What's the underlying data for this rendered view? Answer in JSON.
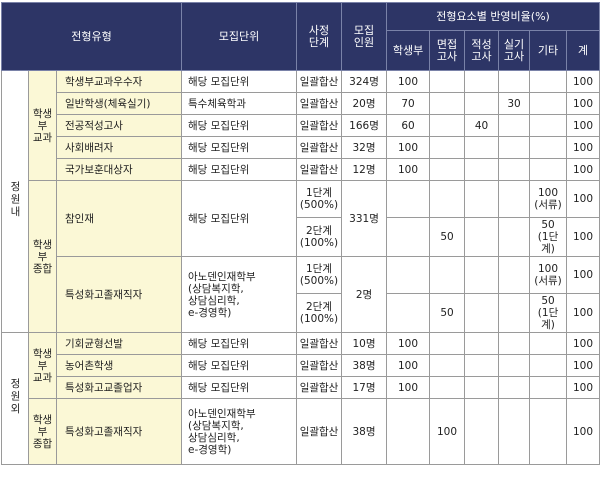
{
  "table": {
    "header": {
      "type": "전형유형",
      "unit": "모집단위",
      "stage": "사정\n단계",
      "quota": "모집\n인원",
      "ratio": "전형요소별 반영비율(%)",
      "elements": [
        "학생부",
        "면접\n고사",
        "적성\n고사",
        "실기\n고사",
        "기타",
        "계"
      ]
    },
    "groups": [
      {
        "label": "정원내",
        "subgroups": [
          {
            "label": "학생\n부\n교과",
            "rows": [
              {
                "name": "학생부교과우수자",
                "unit": "해당 모집단위",
                "stage": "일괄합산",
                "quota": "324명",
                "scores": [
                  100,
                  null,
                  null,
                  null,
                  null,
                  100
                ]
              },
              {
                "name": "일반학생(체육실기)",
                "unit": "특수체육학과",
                "stage": "일괄합산",
                "quota": "20명",
                "scores": [
                  70,
                  null,
                  null,
                  30,
                  null,
                  100
                ]
              },
              {
                "name": "전공적성고사",
                "unit": "해당 모집단위",
                "stage": "일괄합산",
                "quota": "166명",
                "scores": [
                  60,
                  null,
                  40,
                  null,
                  null,
                  100
                ]
              },
              {
                "name": "사회배려자",
                "unit": "해당 모집단위",
                "stage": "일괄합산",
                "quota": "32명",
                "scores": [
                  100,
                  null,
                  null,
                  null,
                  null,
                  100
                ]
              },
              {
                "name": "국가보훈대상자",
                "unit": "해당 모집단위",
                "stage": "일괄합산",
                "quota": "12명",
                "scores": [
                  100,
                  null,
                  null,
                  null,
                  null,
                  100
                ]
              }
            ]
          },
          {
            "label": "학생\n부\n종합",
            "rows": [
              {
                "name": "참인재",
                "unit": "해당 모집단위",
                "quota": "331명",
                "stages": [
                  {
                    "stage": "1단계\n(500%)",
                    "scores": [
                      null,
                      null,
                      null,
                      null,
                      "100\n(서류)",
                      100
                    ]
                  },
                  {
                    "stage": "2단계\n(100%)",
                    "scores": [
                      null,
                      50,
                      null,
                      null,
                      "50\n(1단계)",
                      100
                    ]
                  }
                ]
              },
              {
                "name": "특성화고졸재직자",
                "unit": "아노덴인재학부\n(상담복지학,\n상담심리학,\ne-경영학)",
                "quota": "2명",
                "stages": [
                  {
                    "stage": "1단계\n(500%)",
                    "scores": [
                      null,
                      null,
                      null,
                      null,
                      "100\n(서류)",
                      100
                    ]
                  },
                  {
                    "stage": "2단계\n(100%)",
                    "scores": [
                      null,
                      50,
                      null,
                      null,
                      "50\n(1단계)",
                      100
                    ]
                  }
                ]
              }
            ]
          }
        ]
      },
      {
        "label": "정원외",
        "subgroups": [
          {
            "label": "학생\n부\n교과",
            "rows": [
              {
                "name": "기회균형선발",
                "unit": "해당 모집단위",
                "stage": "일괄합산",
                "quota": "10명",
                "scores": [
                  100,
                  null,
                  null,
                  null,
                  null,
                  100
                ]
              },
              {
                "name": "농어촌학생",
                "unit": "해당 모집단위",
                "stage": "일괄합산",
                "quota": "38명",
                "scores": [
                  100,
                  null,
                  null,
                  null,
                  null,
                  100
                ]
              },
              {
                "name": "특성화고교졸업자",
                "unit": "해당 모집단위",
                "stage": "일괄합산",
                "quota": "17명",
                "scores": [
                  100,
                  null,
                  null,
                  null,
                  null,
                  100
                ]
              }
            ]
          },
          {
            "label": "학생\n부\n종합",
            "rows": [
              {
                "name": "특성화고졸재직자",
                "unit": "아노덴인재학부\n(상담복지학,\n상담심리학,\ne-경영학)",
                "stage": "일괄합산",
                "quota": "38명",
                "scores": [
                  null,
                  100,
                  null,
                  null,
                  null,
                  100
                ]
              }
            ]
          }
        ]
      }
    ]
  }
}
